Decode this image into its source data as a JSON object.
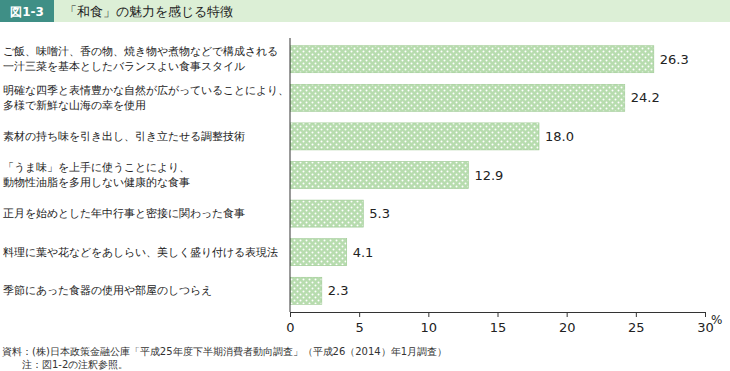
{
  "chart_data": {
    "type": "bar",
    "orientation": "horizontal",
    "figure_number": "図1-3",
    "title": "「和食」の魅力を感じる特徴",
    "categories": [
      "ご飯、味噌汁、香の物、焼き物や煮物などで構成される\n一汁三菜を基本としたバランスよい食事スタイル",
      "明確な四季と表情豊かな自然が広がっていることにより、\n多様で新鮮な山海の幸を使用",
      "素材の持ち味を引き出し、引き立たせる調整技術",
      "「うま味」を上手に使うことにより、\n動物性油脂を多用しない健康的な食事",
      "正月を始めとした年中行事と密接に関わった食事",
      "料理に葉や花などをあしらい、美しく盛り付ける表現法",
      "季節にあった食器の使用や部屋のしつらえ"
    ],
    "values": [
      26.3,
      24.2,
      18.0,
      12.9,
      5.3,
      4.1,
      2.3
    ],
    "value_labels": [
      "26.3",
      "24.2",
      "18.0",
      "12.9",
      "5.3",
      "4.1",
      "2.3"
    ],
    "data_labels": true,
    "color": "#b7dcae",
    "xlim": [
      0,
      30
    ],
    "xticks": [
      0,
      5,
      10,
      15,
      20,
      25,
      30
    ],
    "x_label": "%",
    "grid": false,
    "source": "資料：(株)日本政策金融公庫「平成25年度下半期消費者動向調査」（平成26（2014）年1月調査）",
    "note": "注：図1-2の注釈参照。"
  }
}
